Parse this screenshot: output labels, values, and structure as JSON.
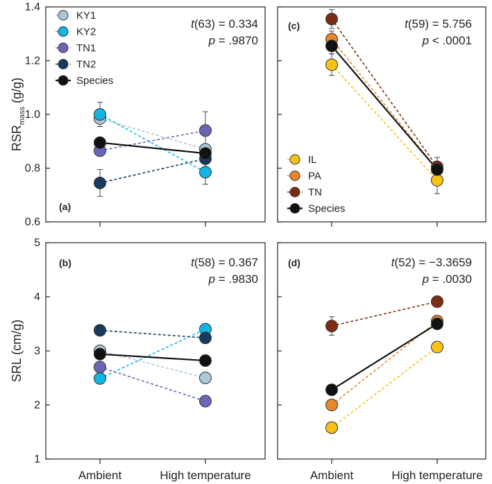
{
  "x_categories": [
    "Ambient",
    "High temperature"
  ],
  "colors": {
    "KY1": "#a9c7d6",
    "KY2": "#12b4e4",
    "TN1": "#6a66b6",
    "TN2": "#173b5f",
    "IL": "#f6c216",
    "PA": "#e8862a",
    "TN": "#7b2d14",
    "Species": "#111111"
  },
  "chart_data": [
    {
      "type": "line",
      "panel_label": "(a)",
      "ylabel_main": "RSR",
      "ylabel_sub": "mass",
      "ylabel_unit": " (g/g)",
      "ylim": [
        0.6,
        1.4
      ],
      "yticks": [
        0.6,
        0.8,
        1.0,
        1.2,
        1.4
      ],
      "ytick_labels": [
        "0.6",
        "0.8",
        "1.0",
        "1.2",
        "1.4"
      ],
      "stat_t_name": "t",
      "stat_t": "(63) = 0.334",
      "stat_p_name": "p",
      "stat_p": " = .9870",
      "legend": [
        "KY1",
        "KY2",
        "TN1",
        "TN2",
        "Species"
      ],
      "series": [
        {
          "name": "KY1",
          "values": [
            0.985,
            0.87
          ],
          "err": [
            0.03,
            0.0
          ]
        },
        {
          "name": "KY2",
          "values": [
            1.0,
            0.785
          ],
          "err": [
            0.045,
            0.045
          ]
        },
        {
          "name": "TN1",
          "values": [
            0.865,
            0.94
          ],
          "err": [
            0.0,
            0.07
          ]
        },
        {
          "name": "TN2",
          "values": [
            0.745,
            0.835
          ],
          "err": [
            0.05,
            0.0
          ]
        },
        {
          "name": "Species",
          "values": [
            0.895,
            0.855
          ],
          "err": [
            0.0,
            0.0
          ]
        }
      ]
    },
    {
      "type": "line",
      "panel_label": "(c)",
      "ylim": [
        0.6,
        1.4
      ],
      "yticks": [
        0.6,
        0.8,
        1.0,
        1.2,
        1.4
      ],
      "stat_t_name": "t",
      "stat_t": "(59) = 5.756",
      "stat_p_name": "p",
      "stat_p": " < .0001",
      "legend": [
        "IL",
        "PA",
        "TN",
        "Species"
      ],
      "series": [
        {
          "name": "IL",
          "values": [
            1.185,
            0.755
          ],
          "err": [
            0.04,
            0.05
          ]
        },
        {
          "name": "PA",
          "values": [
            1.28,
            0.795
          ],
          "err": [
            0.03,
            0.03
          ]
        },
        {
          "name": "TN",
          "values": [
            1.355,
            0.805
          ],
          "err": [
            0.035,
            0.035
          ]
        },
        {
          "name": "Species",
          "values": [
            1.255,
            0.795
          ],
          "err": [
            0.03,
            0.0
          ]
        }
      ]
    },
    {
      "type": "line",
      "panel_label": "(b)",
      "ylabel": "SRL (cm/g)",
      "ylim": [
        1,
        5
      ],
      "yticks": [
        1,
        2,
        3,
        4,
        5
      ],
      "ytick_labels": [
        "1",
        "2",
        "3",
        "4",
        "5"
      ],
      "stat_t_name": "t",
      "stat_t": "(58) = 0.367",
      "stat_p_name": "p",
      "stat_p": " = .9830",
      "series": [
        {
          "name": "KY1",
          "values": [
            3.0,
            2.5
          ],
          "err": [
            0.1,
            0.0
          ]
        },
        {
          "name": "KY2",
          "values": [
            2.49,
            3.4
          ],
          "err": [
            0.0,
            0.0
          ]
        },
        {
          "name": "TN1",
          "values": [
            2.7,
            2.07
          ],
          "err": [
            0.0,
            0.0
          ]
        },
        {
          "name": "TN2",
          "values": [
            3.38,
            3.24
          ],
          "err": [
            0.0,
            0.0
          ]
        },
        {
          "name": "Species",
          "values": [
            2.94,
            2.82
          ],
          "err": [
            0.0,
            0.0
          ]
        }
      ]
    },
    {
      "type": "line",
      "panel_label": "(d)",
      "ylim": [
        1,
        5
      ],
      "yticks": [
        1,
        2,
        3,
        4,
        5
      ],
      "stat_t_name": "t",
      "stat_t": "(52) = −3.3659",
      "stat_p_name": "p",
      "stat_p": " = .0030",
      "series": [
        {
          "name": "IL",
          "values": [
            1.58,
            3.07
          ],
          "err": [
            0.0,
            0.0
          ]
        },
        {
          "name": "PA",
          "values": [
            2.0,
            3.55
          ],
          "err": [
            0.0,
            0.1
          ]
        },
        {
          "name": "TN",
          "values": [
            3.46,
            3.91
          ],
          "err": [
            0.17,
            0.1
          ]
        },
        {
          "name": "Species",
          "values": [
            2.28,
            3.5
          ],
          "err": [
            0.0,
            0.0
          ]
        }
      ]
    }
  ]
}
